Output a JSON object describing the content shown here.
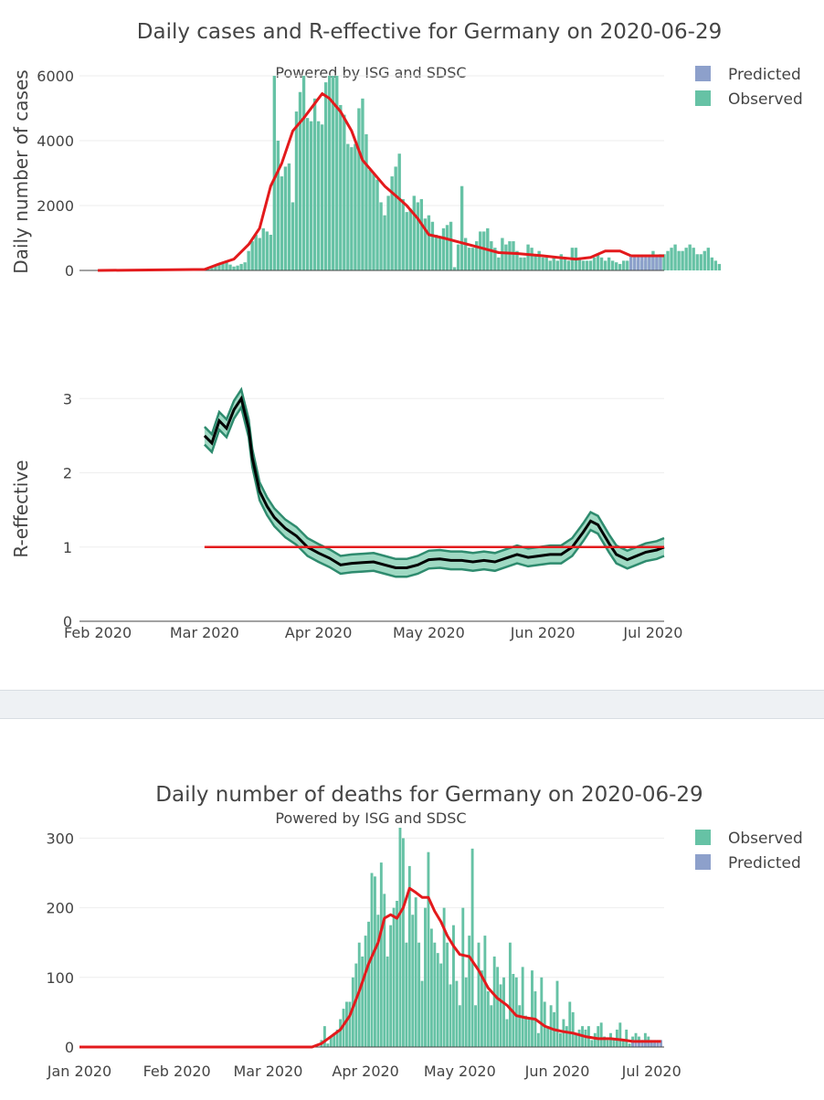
{
  "colors": {
    "observed": "#66c2a5",
    "predicted": "#8da0cb",
    "smooth": "#e31a1c",
    "reff_band": "#2e8b6e",
    "reff_line": "#000000",
    "grid": "#eeeeee",
    "text": "#444444"
  },
  "chart_data": [
    {
      "id": "cases",
      "type": "bar",
      "title": "Daily cases and R-effective for Germany on 2020-06-29",
      "subtitle": "Powered by ISG and SDSC",
      "ylabel": "Daily number of cases",
      "ylim": [
        0,
        6000
      ],
      "yticks": [
        "0",
        "2000",
        "4000",
        "6000"
      ],
      "x_start": "2020-01-27",
      "x_end": "2020-07-04",
      "legend": [
        "Predicted",
        "Observed"
      ],
      "legend_position": "top-right",
      "observed": {
        "start": "2020-03-01",
        "values": [
          60,
          60,
          100,
          150,
          200,
          250,
          300,
          180,
          120,
          150,
          200,
          250,
          600,
          900,
          1100,
          1000,
          1300,
          1200,
          1100,
          6000,
          4000,
          2900,
          3200,
          3300,
          2100,
          4900,
          5500,
          6300,
          4700,
          4600,
          5300,
          4600,
          4500,
          5800,
          6200,
          6000,
          6000,
          5100,
          4800,
          3900,
          3800,
          3900,
          5000,
          5300,
          4200,
          3100,
          3000,
          2800,
          2100,
          1700,
          2300,
          2900,
          3200,
          3600,
          2200,
          1800,
          1900,
          2300,
          2100,
          2200,
          1600,
          1700,
          1500,
          1100,
          1000,
          1300,
          1400,
          1500,
          100,
          800,
          2600,
          1000,
          700,
          700,
          900,
          1200,
          1200,
          1300,
          900,
          700,
          400,
          1000,
          800,
          900,
          900,
          600,
          400,
          400,
          800,
          700,
          500,
          600,
          400,
          400,
          300,
          400,
          300,
          500,
          400,
          300,
          700,
          700,
          400,
          300,
          300,
          300,
          400,
          500,
          400,
          300,
          400,
          300,
          250,
          200,
          300,
          300,
          400,
          400,
          300,
          300,
          300,
          400,
          600,
          400,
          500,
          500,
          600,
          700,
          800,
          600,
          600,
          700,
          800,
          700,
          500,
          500,
          600,
          700,
          400,
          300,
          200
        ],
        "x_ticks_note": "bars are daily, first bar dated start"
      },
      "predicted": {
        "start": "2020-06-25",
        "values": [
          450,
          450,
          450,
          450,
          450,
          450,
          450,
          450,
          450
        ]
      },
      "smoothed": {
        "x": [
          "2020-02-01",
          "2020-03-01",
          "2020-03-05",
          "2020-03-09",
          "2020-03-13",
          "2020-03-16",
          "2020-03-19",
          "2020-03-22",
          "2020-03-25",
          "2020-03-28",
          "2020-03-31",
          "2020-04-02",
          "2020-04-04",
          "2020-04-07",
          "2020-04-10",
          "2020-04-13",
          "2020-04-16",
          "2020-04-19",
          "2020-04-22",
          "2020-04-25",
          "2020-04-28",
          "2020-05-01",
          "2020-05-05",
          "2020-05-10",
          "2020-05-15",
          "2020-05-20",
          "2020-05-25",
          "2020-06-01",
          "2020-06-05",
          "2020-06-10",
          "2020-06-14",
          "2020-06-18",
          "2020-06-22",
          "2020-06-25"
        ],
        "y": [
          0,
          30,
          200,
          350,
          800,
          1300,
          2600,
          3300,
          4300,
          4700,
          5150,
          5450,
          5300,
          4900,
          4300,
          3400,
          3000,
          2600,
          2300,
          2000,
          1600,
          1100,
          1000,
          850,
          700,
          550,
          520,
          450,
          400,
          350,
          400,
          600,
          600,
          450
        ]
      },
      "predicted_smoothed": {
        "x": [
          "2020-06-25",
          "2020-07-04"
        ],
        "y": [
          450,
          450
        ]
      }
    },
    {
      "id": "reff",
      "type": "line",
      "ylabel": "R-effective",
      "ylim": [
        0,
        3.2
      ],
      "yticks": [
        "0",
        "1",
        "2",
        "3"
      ],
      "x_start": "2020-01-27",
      "x_end": "2020-07-04",
      "x_tick_labels": [
        "Feb 2020",
        "Mar 2020",
        "Apr 2020",
        "May 2020",
        "Jun 2020",
        "Jul 2020"
      ],
      "x_tick_dates": [
        "2020-02-01",
        "2020-03-01",
        "2020-04-01",
        "2020-05-01",
        "2020-06-01",
        "2020-07-01"
      ],
      "reference_line": {
        "x": [
          "2020-03-01",
          "2020-07-04"
        ],
        "y": 1
      },
      "series": {
        "x": [
          "2020-03-01",
          "2020-03-03",
          "2020-03-05",
          "2020-03-07",
          "2020-03-09",
          "2020-03-11",
          "2020-03-13",
          "2020-03-14",
          "2020-03-16",
          "2020-03-18",
          "2020-03-20",
          "2020-03-23",
          "2020-03-26",
          "2020-03-29",
          "2020-04-01",
          "2020-04-04",
          "2020-04-07",
          "2020-04-10",
          "2020-04-13",
          "2020-04-16",
          "2020-04-19",
          "2020-04-22",
          "2020-04-25",
          "2020-04-28",
          "2020-05-01",
          "2020-05-04",
          "2020-05-07",
          "2020-05-10",
          "2020-05-13",
          "2020-05-16",
          "2020-05-19",
          "2020-05-22",
          "2020-05-25",
          "2020-05-28",
          "2020-05-31",
          "2020-06-03",
          "2020-06-06",
          "2020-06-09",
          "2020-06-12",
          "2020-06-14",
          "2020-06-16",
          "2020-06-19",
          "2020-06-21",
          "2020-06-24",
          "2020-06-26",
          "2020-06-29",
          "2020-07-02",
          "2020-07-04"
        ],
        "mean": [
          2.5,
          2.4,
          2.7,
          2.6,
          2.85,
          3.0,
          2.6,
          2.2,
          1.75,
          1.55,
          1.4,
          1.25,
          1.15,
          1.0,
          0.92,
          0.85,
          0.76,
          0.78,
          0.79,
          0.8,
          0.76,
          0.72,
          0.72,
          0.76,
          0.83,
          0.84,
          0.82,
          0.82,
          0.8,
          0.82,
          0.8,
          0.85,
          0.9,
          0.86,
          0.88,
          0.9,
          0.9,
          1.0,
          1.2,
          1.35,
          1.3,
          1.05,
          0.9,
          0.83,
          0.87,
          0.93,
          0.96,
          1.0
        ],
        "band": 0.12
      }
    },
    {
      "id": "deaths",
      "type": "bar",
      "title": "Daily number of deaths for Germany on 2020-06-29",
      "subtitle": "Powered by ISG and SDSC",
      "ylim": [
        0,
        315
      ],
      "yticks": [
        "0",
        "100",
        "200",
        "300"
      ],
      "x_start": "2020-01-01",
      "x_end": "2020-07-05",
      "x_tick_labels": [
        "Jan 2020",
        "Feb 2020",
        "Mar 2020",
        "Apr 2020",
        "May 2020",
        "Jun 2020",
        "Jul 2020"
      ],
      "x_tick_dates": [
        "2020-01-01",
        "2020-02-01",
        "2020-03-01",
        "2020-04-01",
        "2020-05-01",
        "2020-06-01",
        "2020-07-01"
      ],
      "legend": [
        "Observed",
        "Predicted"
      ],
      "legend_position": "top-right",
      "observed": {
        "start": "2020-03-18",
        "values": [
          10,
          30,
          5,
          15,
          20,
          25,
          40,
          55,
          65,
          65,
          100,
          120,
          150,
          130,
          160,
          180,
          250,
          245,
          190,
          265,
          220,
          130,
          175,
          200,
          210,
          315,
          300,
          150,
          260,
          190,
          215,
          150,
          95,
          200,
          280,
          170,
          150,
          135,
          120,
          200,
          150,
          90,
          175,
          95,
          60,
          200,
          100,
          160,
          285,
          60,
          150,
          110,
          160,
          80,
          60,
          130,
          115,
          90,
          100,
          40,
          150,
          105,
          100,
          60,
          115,
          45,
          40,
          110,
          80,
          20,
          100,
          65,
          30,
          60,
          50,
          95,
          20,
          40,
          30,
          65,
          50,
          20,
          25,
          30,
          25,
          30,
          10,
          20,
          30,
          35,
          15,
          10,
          20,
          10,
          25,
          35,
          10,
          25,
          5,
          15,
          20,
          15,
          10,
          20,
          15,
          5,
          5
        ],
        "x_ticks_note": "bars are daily, first bar dated start"
      },
      "predicted": {
        "start": "2020-06-25",
        "values": [
          10,
          10,
          10,
          10,
          10,
          10,
          10,
          10,
          10,
          10
        ]
      },
      "smoothed": {
        "x": [
          "2020-01-01",
          "2020-03-15",
          "2020-03-18",
          "2020-03-21",
          "2020-03-24",
          "2020-03-27",
          "2020-03-30",
          "2020-04-02",
          "2020-04-05",
          "2020-04-07",
          "2020-04-09",
          "2020-04-11",
          "2020-04-13",
          "2020-04-15",
          "2020-04-17",
          "2020-04-19",
          "2020-04-21",
          "2020-04-23",
          "2020-04-25",
          "2020-04-27",
          "2020-04-29",
          "2020-05-01",
          "2020-05-04",
          "2020-05-07",
          "2020-05-10",
          "2020-05-13",
          "2020-05-16",
          "2020-05-19",
          "2020-05-22",
          "2020-05-25",
          "2020-05-28",
          "2020-05-31",
          "2020-06-03",
          "2020-06-06",
          "2020-06-10",
          "2020-06-14",
          "2020-06-18",
          "2020-06-22",
          "2020-06-25"
        ],
        "y": [
          0,
          0,
          5,
          15,
          25,
          45,
          80,
          120,
          150,
          185,
          190,
          185,
          200,
          228,
          222,
          215,
          215,
          195,
          180,
          160,
          145,
          133,
          130,
          110,
          85,
          70,
          60,
          45,
          42,
          40,
          30,
          25,
          22,
          20,
          15,
          12,
          12,
          10,
          8
        ]
      },
      "predicted_smoothed": {
        "x": [
          "2020-06-25",
          "2020-07-04"
        ],
        "y": [
          8,
          8
        ]
      }
    }
  ]
}
